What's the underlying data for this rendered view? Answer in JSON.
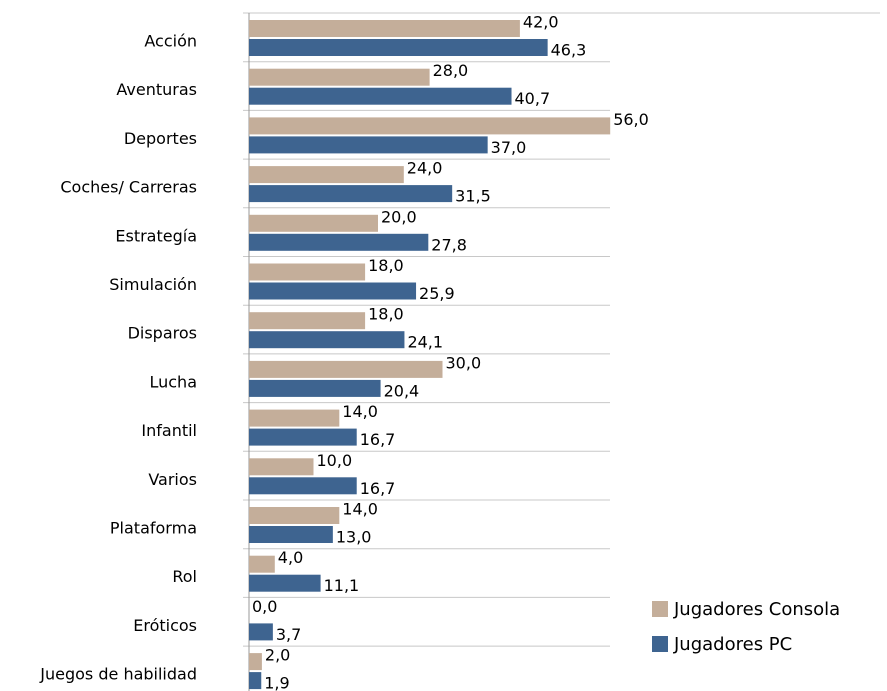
{
  "chart_data": {
    "type": "bar",
    "orientation": "horizontal",
    "categories": [
      "Acción",
      "Aventuras",
      "Deportes",
      "Coches/ Carreras",
      "Estrategía",
      "Simulación",
      "Disparos",
      "Lucha",
      "Infantil",
      "Varios",
      "Plataforma",
      "Rol",
      "Eróticos",
      "Juegos de habilidad"
    ],
    "series": [
      {
        "name": "Jugadores Consola",
        "color": "#c4ae9a",
        "values": [
          42.0,
          28.0,
          56.0,
          24.0,
          20.0,
          18.0,
          18.0,
          30.0,
          14.0,
          10.0,
          14.0,
          4.0,
          0.0,
          2.0
        ],
        "value_labels": [
          "42,0",
          "28,0",
          "56,0",
          "24,0",
          "20,0",
          "18,0",
          "18,0",
          "30,0",
          "14,0",
          "10,0",
          "14,0",
          "4,0",
          "0,0",
          "2,0"
        ]
      },
      {
        "name": "Jugadores PC",
        "color": "#3e6490",
        "values": [
          46.3,
          40.7,
          37.0,
          31.5,
          27.8,
          25.9,
          24.1,
          20.4,
          16.7,
          16.7,
          13.0,
          11.1,
          3.7,
          1.9
        ],
        "value_labels": [
          "46,3",
          "40,7",
          "37,0",
          "31,5",
          "27,8",
          "25,9",
          "24,1",
          "20,4",
          "16,7",
          "16,7",
          "13,0",
          "11,1",
          "3,7",
          "1,9"
        ]
      }
    ],
    "legend": "bottom-right",
    "grid": true
  }
}
